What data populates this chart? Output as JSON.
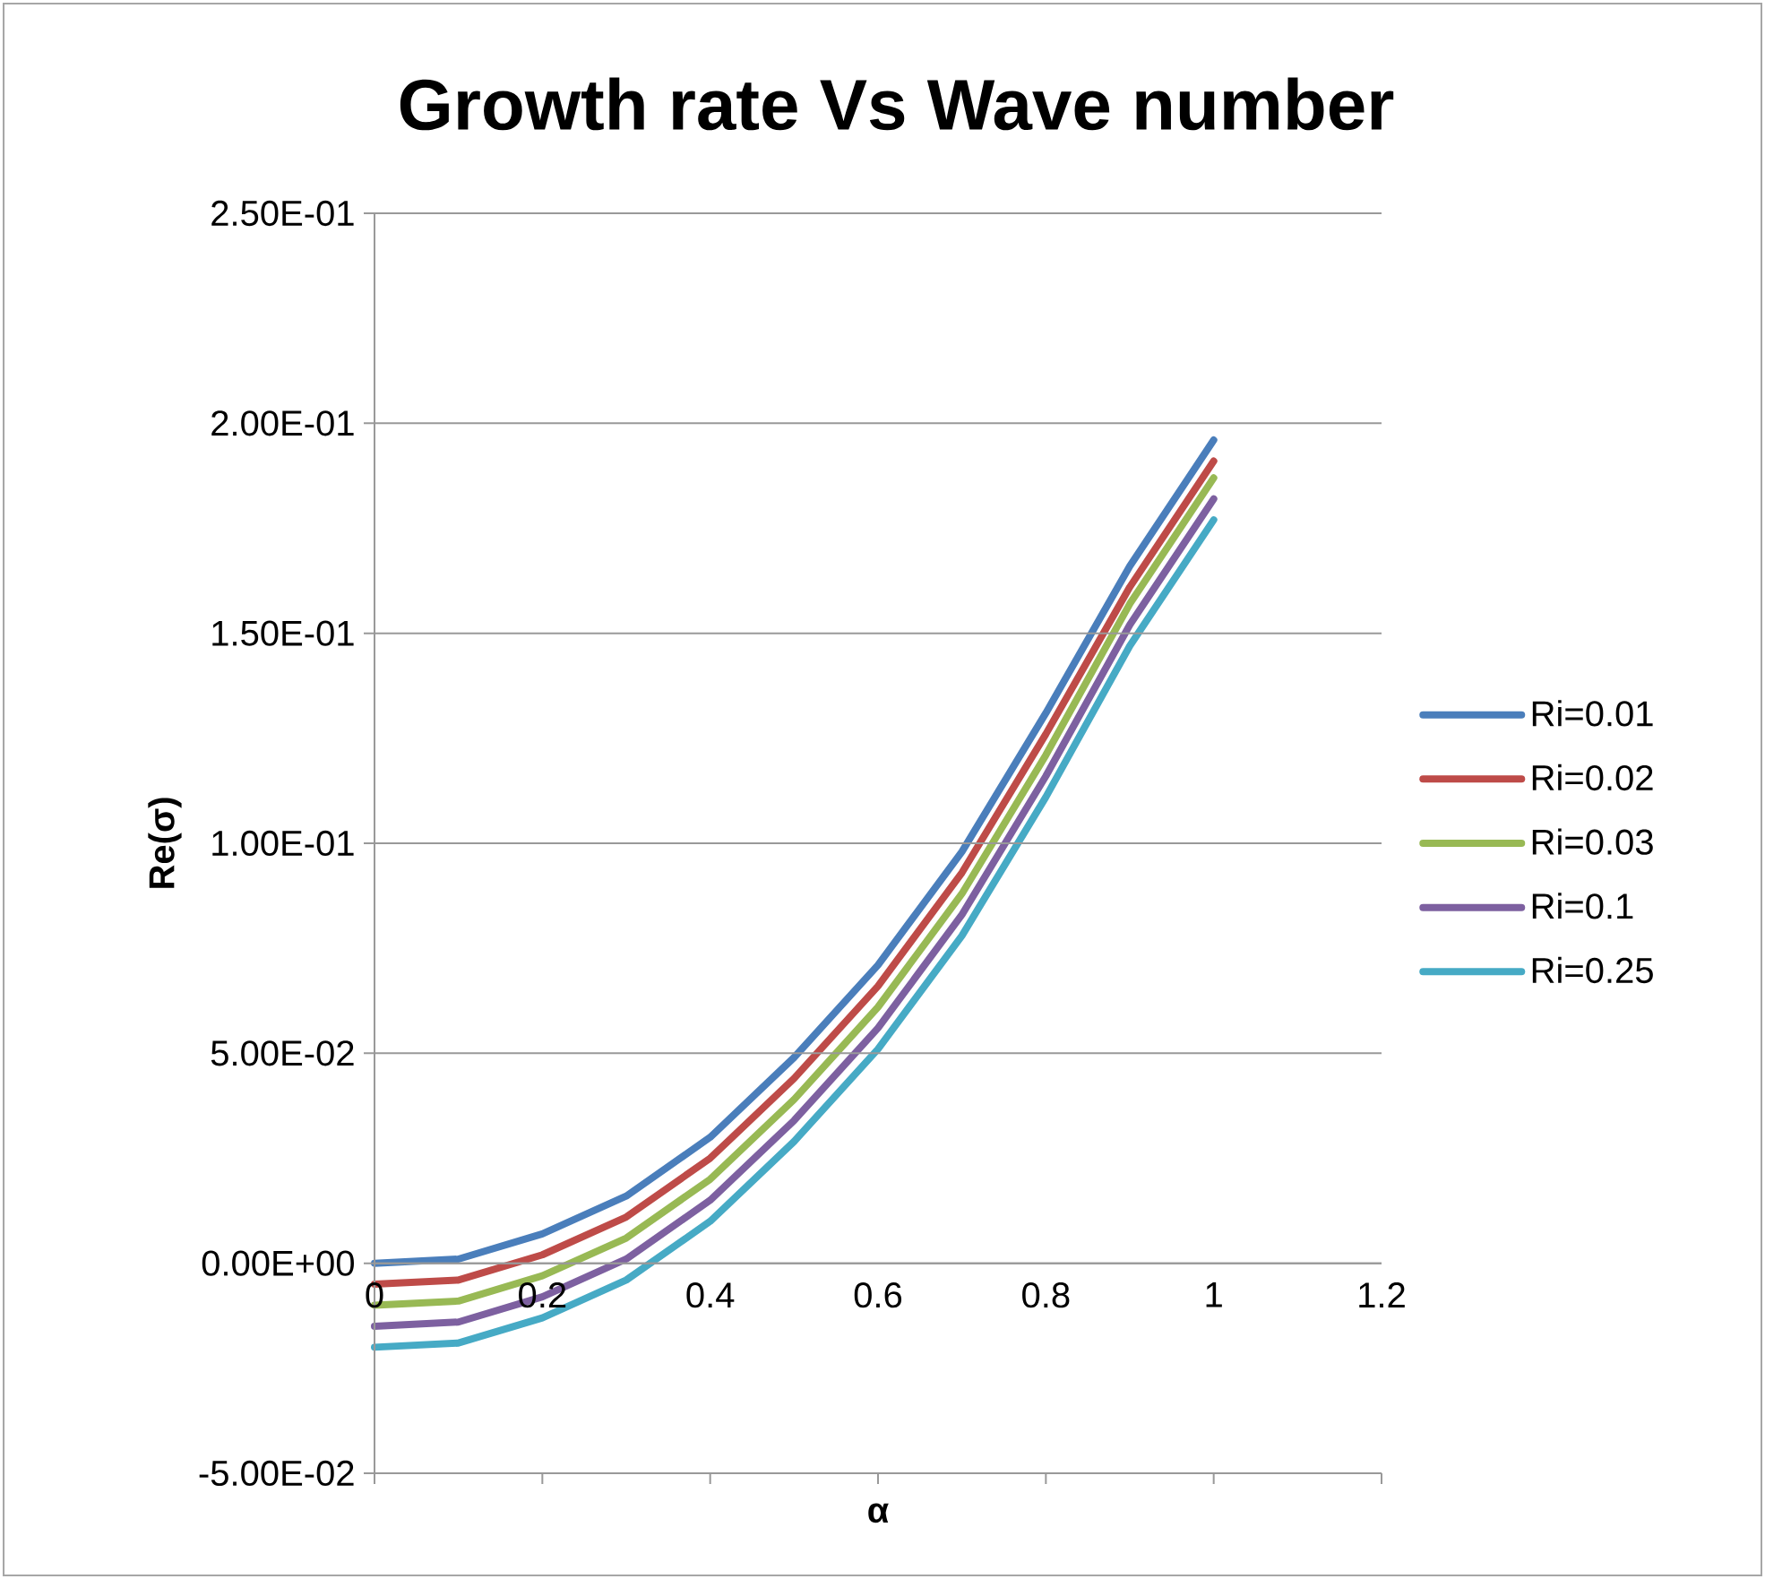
{
  "chart_data": {
    "type": "line",
    "title": "Growth rate Vs Wave number",
    "xlabel": "α",
    "ylabel": "Re(σ)",
    "x": [
      0,
      0.1,
      0.2,
      0.3,
      0.4,
      0.5,
      0.6,
      0.7,
      0.8,
      0.9,
      1
    ],
    "series": [
      {
        "name": "Ri=0.01",
        "color": "#4a7ebb",
        "values": [
          0,
          0.001,
          0.007,
          0.016,
          0.03,
          0.049,
          0.071,
          0.098,
          0.131,
          0.166,
          0.196
        ]
      },
      {
        "name": "Ri=0.02",
        "color": "#be4b48",
        "values": [
          -0.005,
          -0.004,
          0.002,
          0.011,
          0.025,
          0.044,
          0.066,
          0.093,
          0.126,
          0.161,
          0.191
        ]
      },
      {
        "name": "Ri=0.03",
        "color": "#98b954",
        "values": [
          -0.01,
          -0.009,
          -0.003,
          0.006,
          0.02,
          0.039,
          0.061,
          0.088,
          0.121,
          0.157,
          0.187
        ]
      },
      {
        "name": "Ri=0.1",
        "color": "#7d60a0",
        "values": [
          -0.015,
          -0.014,
          -0.008,
          0.001,
          0.015,
          0.034,
          0.056,
          0.083,
          0.116,
          0.152,
          0.182
        ]
      },
      {
        "name": "Ri=0.25",
        "color": "#46aac5",
        "values": [
          -0.02,
          -0.019,
          -0.013,
          -0.004,
          0.01,
          0.029,
          0.051,
          0.078,
          0.111,
          0.147,
          0.177
        ]
      }
    ],
    "xlim": [
      0,
      1.2
    ],
    "xticks": [
      0,
      0.2,
      0.4,
      0.6,
      0.8,
      1,
      1.2
    ],
    "ylim": [
      -0.05,
      0.25
    ],
    "yticks": [
      {
        "value": -0.05,
        "label": "-5.00E-02"
      },
      {
        "value": 0,
        "label": "0.00E+00"
      },
      {
        "value": 0.05,
        "label": "5.00E-02"
      },
      {
        "value": 0.1,
        "label": "1.00E-01"
      },
      {
        "value": 0.15,
        "label": "1.50E-01"
      },
      {
        "value": 0.2,
        "label": "2.00E-01"
      },
      {
        "value": 0.25,
        "label": "2.50E-01"
      }
    ],
    "grid": "y",
    "legend": "right",
    "marker": "none",
    "line_style": "solid"
  }
}
